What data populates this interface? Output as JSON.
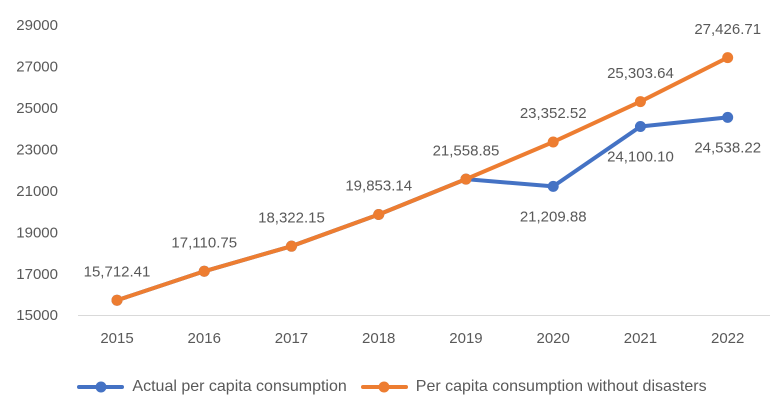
{
  "colors": {
    "actual_series": "#4472C4",
    "no_disaster_series": "#ED7D31",
    "axis_line": "#D9D9D9",
    "label_text": "#595959",
    "background": "#FFFFFF"
  },
  "chart_data": {
    "type": "line",
    "title": "",
    "xlabel": "",
    "ylabel": "",
    "categories": [
      "2015",
      "2016",
      "2017",
      "2018",
      "2019",
      "2020",
      "2021",
      "2022"
    ],
    "series": [
      {
        "name": "Actual per capita consumption",
        "color": "#4472C4",
        "values": [
          15712.41,
          17110.75,
          18322.15,
          19853.14,
          21558.85,
          21209.88,
          24100.1,
          24538.22
        ],
        "point_labels": [
          "",
          "",
          "",
          "",
          "",
          "21,209.88",
          "24,100.10",
          "24,538.22"
        ],
        "label_position": "below"
      },
      {
        "name": "Per capita consumption without disasters",
        "color": "#ED7D31",
        "values": [
          15712.41,
          17110.75,
          18322.15,
          19853.14,
          21558.85,
          23352.52,
          25303.64,
          27426.71
        ],
        "point_labels": [
          "15,712.41",
          "17,110.75",
          "18,322.15",
          "19,853.14",
          "21,558.85",
          "23,352.52",
          "25,303.64",
          "27,426.71"
        ],
        "label_position": "above"
      }
    ],
    "ylim": [
      15000,
      29000
    ],
    "ytick_step": 2000,
    "yticks": [
      "29000",
      "27000",
      "25000",
      "23000",
      "21000",
      "19000",
      "17000",
      "15000"
    ],
    "grid": false,
    "legend_position": "bottom"
  }
}
